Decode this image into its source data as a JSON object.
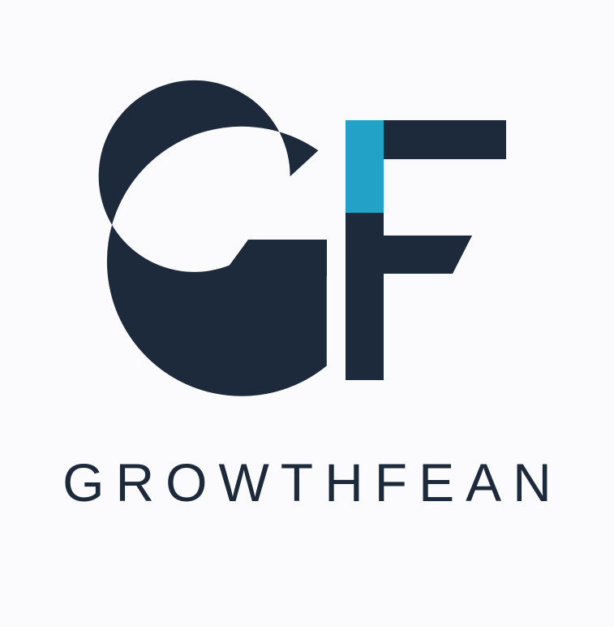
{
  "brand": {
    "monogram": "GF",
    "name": "GROWTHFEAN"
  },
  "colors": {
    "background": "#fbfbfd",
    "navy": "#1d2a3b",
    "accent": "#22a2c6"
  }
}
